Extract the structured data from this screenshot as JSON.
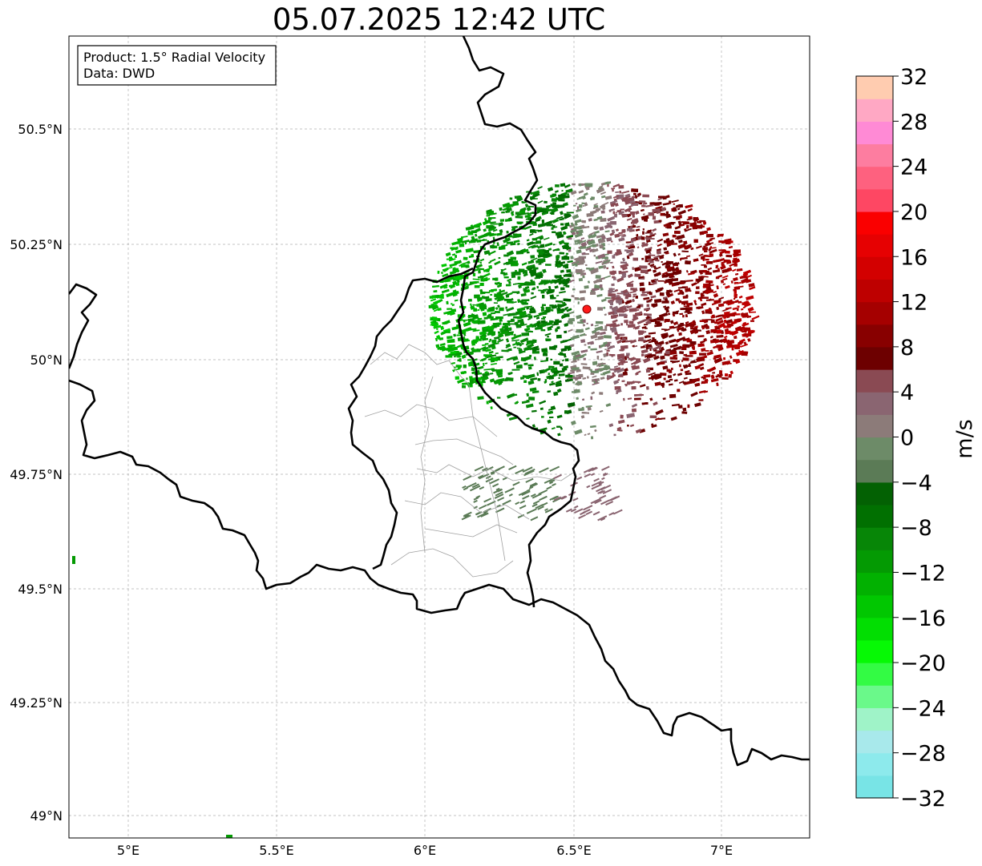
{
  "title": "05.07.2025 12:42 UTC",
  "info": {
    "product_line": "Product: 1.5° Radial Velocity",
    "data_line": "Data: DWD"
  },
  "axes": {
    "lon_ticks": [
      "5°E",
      "5.5°E",
      "6°E",
      "6.5°E",
      "7°E"
    ],
    "lat_ticks": [
      "50.5°N",
      "50.25°N",
      "50°N",
      "49.75°N",
      "49.5°N",
      "49.25°N",
      "49°N"
    ]
  },
  "colorbar": {
    "label": "m/s",
    "tick_labels": [
      "32",
      "28",
      "24",
      "20",
      "16",
      "12",
      "8",
      "4",
      "0",
      "−4",
      "−8",
      "−12",
      "−16",
      "−20",
      "−24",
      "−28",
      "−32"
    ],
    "vmin": -32,
    "vmax": 32,
    "colors_bottom_to_top": [
      "#78e4e6",
      "#8deaec",
      "#a8e9eb",
      "#9ff3c8",
      "#6af98a",
      "#33fb44",
      "#06f905",
      "#02de02",
      "#01c701",
      "#02b101",
      "#049a03",
      "#078607",
      "#017001",
      "#036103",
      "#5b7b56",
      "#6d8b68",
      "#8c7b79",
      "#8a6571",
      "#8a4a53",
      "#6d0000",
      "#880000",
      "#a50000",
      "#be0000",
      "#d30000",
      "#e60102",
      "#fa0000",
      "#fe4763",
      "#fe617f",
      "#fd7da0",
      "#ff8ad5",
      "#ffa8c4",
      "#ffccb0"
    ]
  },
  "radar_site_color": "#ff1a1a"
}
